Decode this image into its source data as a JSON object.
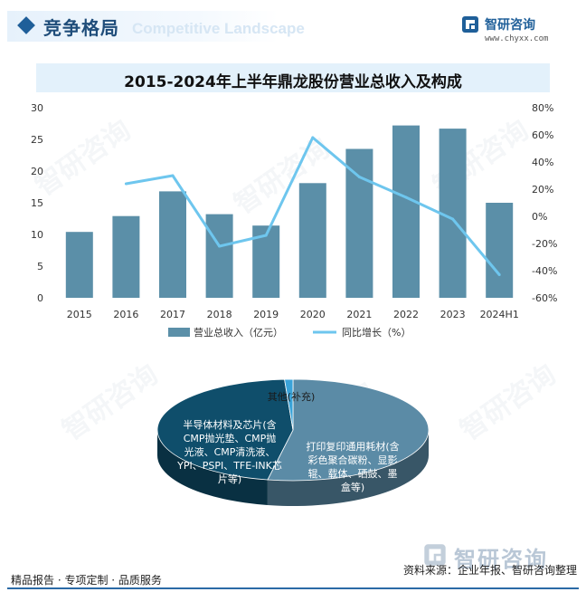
{
  "header": {
    "section_title": "竞争格局",
    "section_ghost": "Competitive Landscape",
    "brand_name": "智研咨询",
    "brand_url": "www.chyxx.com",
    "watermark": "智研咨询"
  },
  "chart_title": "2015-2024年上半年鼎龙股份营业总收入及构成",
  "chart_data": [
    {
      "type": "bar+line",
      "title": "2015-2024年上半年鼎龙股份营业总收入及构成",
      "categories": [
        "2015",
        "2016",
        "2017",
        "2018",
        "2019",
        "2020",
        "2021",
        "2022",
        "2023",
        "2024H1"
      ],
      "series": [
        {
          "name": "营业总收入（亿元）",
          "type": "bar",
          "axis": "left",
          "values": [
            10.4,
            12.9,
            16.8,
            13.2,
            11.4,
            18.1,
            23.5,
            27.2,
            26.7,
            15.0
          ]
        },
        {
          "name": "同比增长（%）",
          "type": "line",
          "axis": "right",
          "values": [
            null,
            24,
            30,
            -22,
            -14,
            58,
            29,
            14,
            -2,
            -43
          ]
        }
      ],
      "y_left": {
        "ticks": [
          0,
          5,
          10,
          15,
          20,
          25,
          30
        ],
        "ylim": [
          0,
          30
        ]
      },
      "y_right": {
        "ticks": [
          "80%",
          "60%",
          "40%",
          "20%",
          "0%",
          "-20%",
          "-40%",
          "-60%"
        ],
        "ylim": [
          -60,
          80
        ]
      },
      "legend_position": "bottom",
      "colors": {
        "bar": "#5b8fa8",
        "line": "#6ec6ee"
      }
    },
    {
      "type": "pie",
      "style": "3d",
      "slices": [
        {
          "label": "打印复印通用耗材(含彩色聚合碳粉、显影辊、载体、硒鼓、墨盒等)",
          "value": 53,
          "color": "#5b8ba6"
        },
        {
          "label": "半导体材料及芯片(含CMP抛光垫、CMP抛光液、CMP清洗液、YPI、PSPI、TFE-INK芯片等)",
          "value": 46,
          "color": "#0f4e6b"
        },
        {
          "label": "其他(补充)",
          "value": 1,
          "color": "#3aa3d8"
        }
      ]
    }
  ],
  "footer": {
    "left": "精品报告 · 专项定制 · 品质服务",
    "right": "资料来源：企业年报、智研咨询整理",
    "brand_name": "智研咨询"
  }
}
